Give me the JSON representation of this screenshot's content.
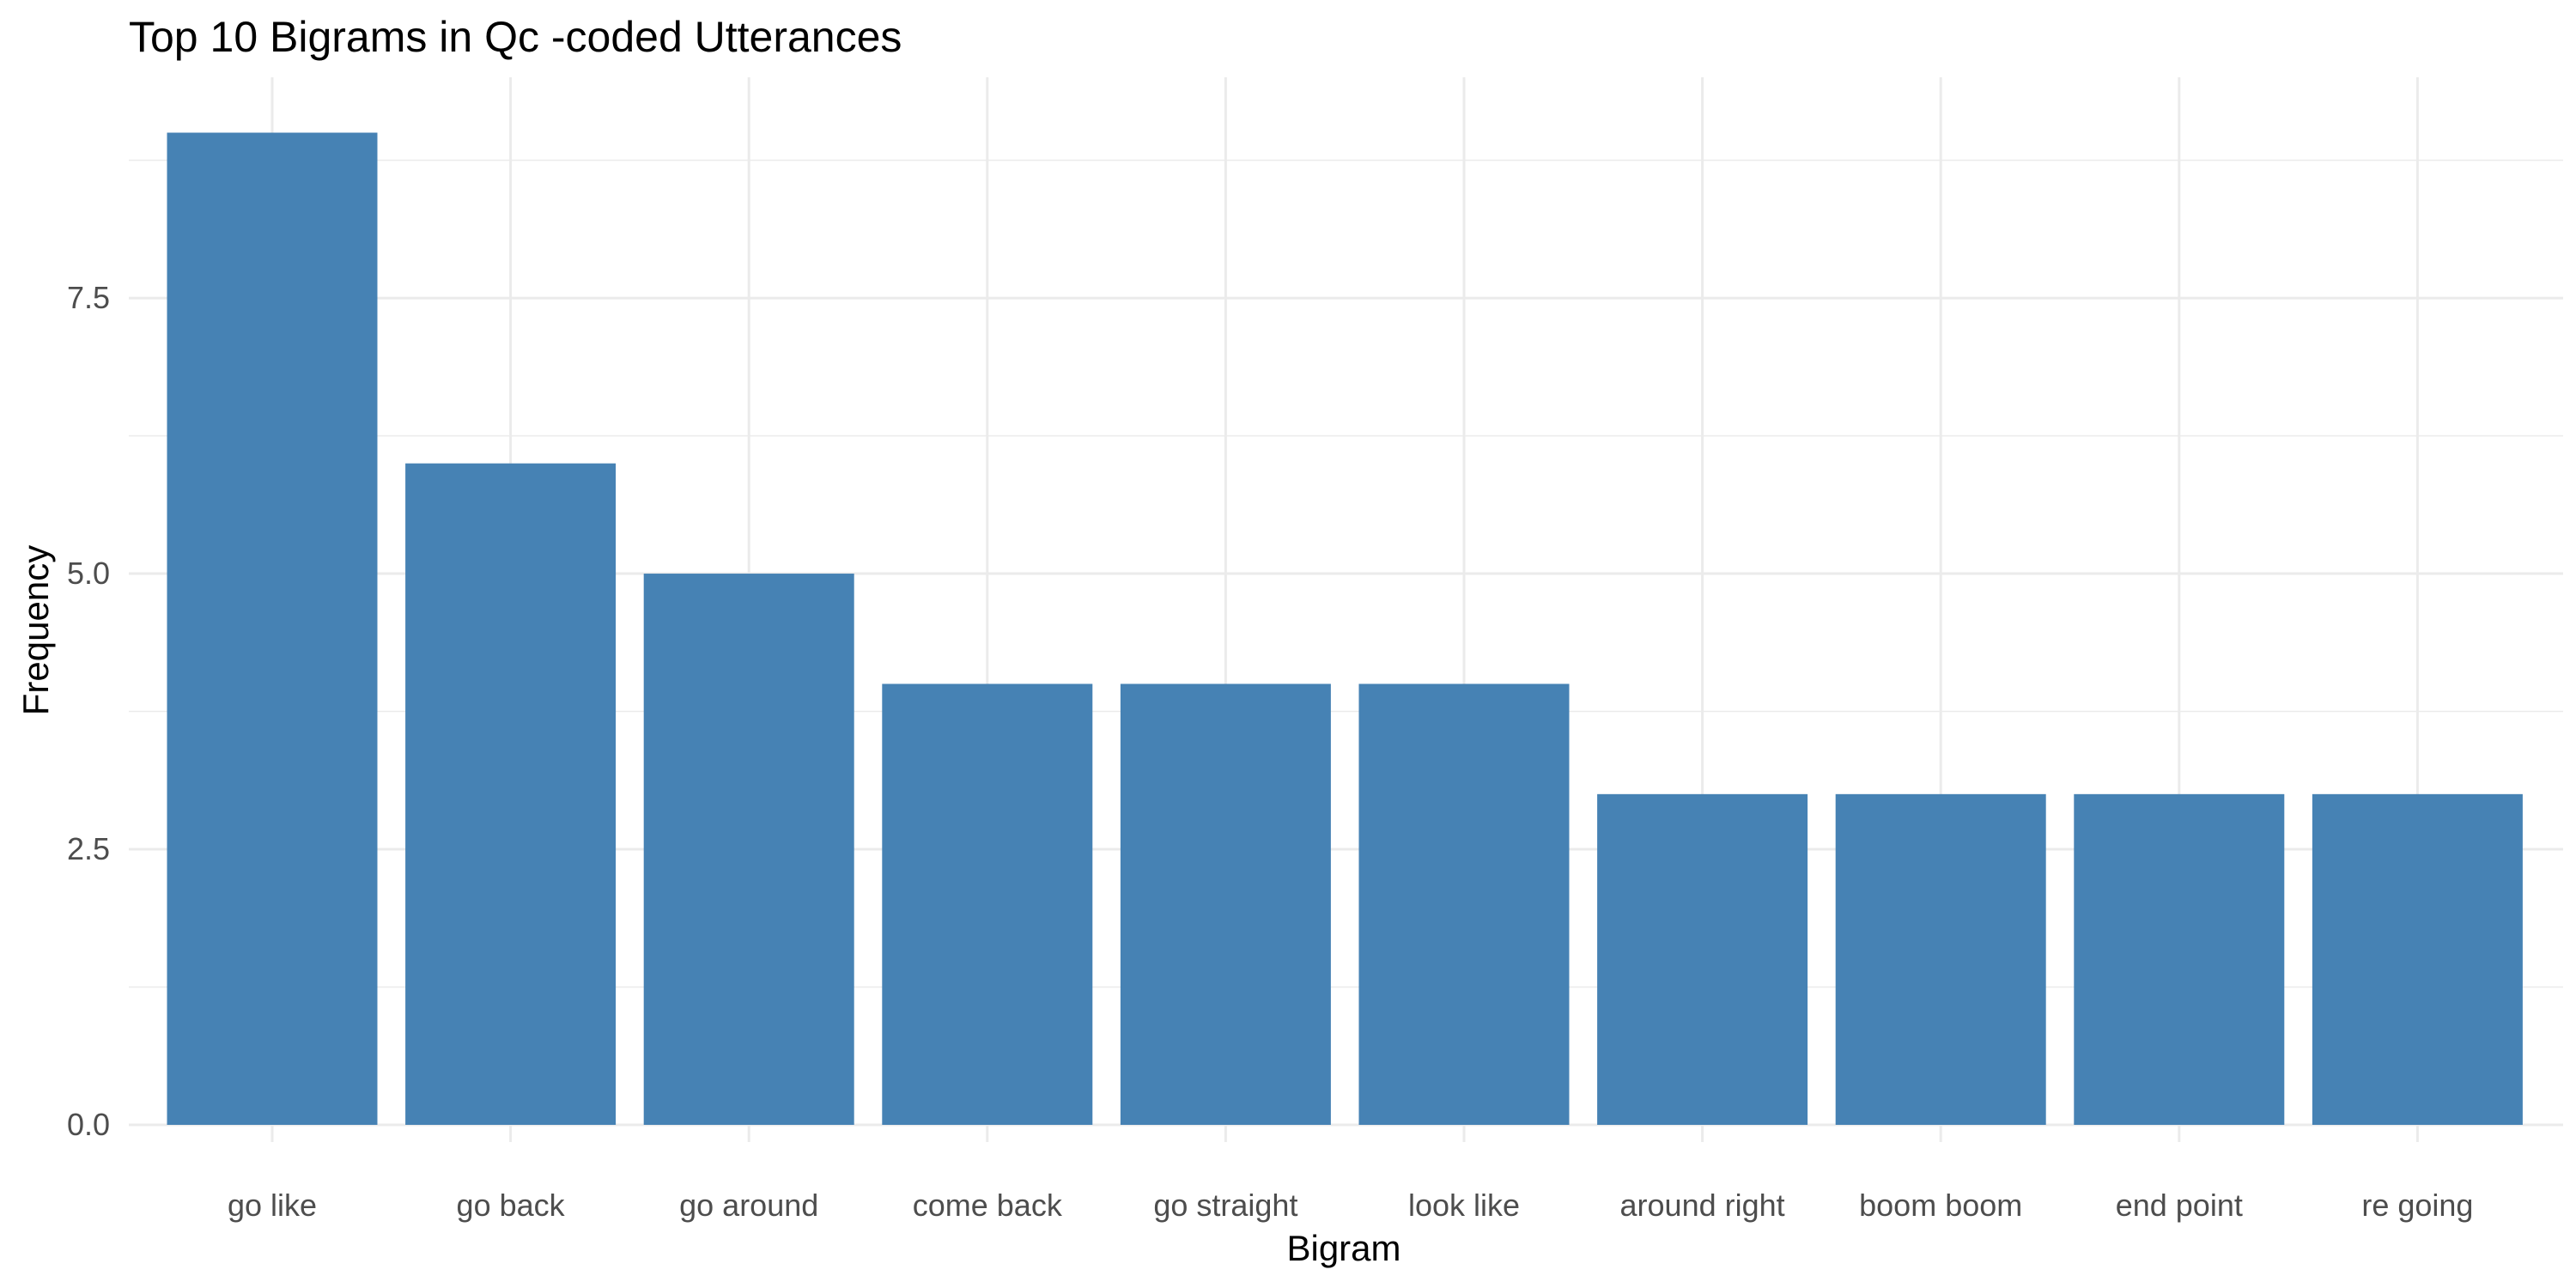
{
  "chart_data": {
    "type": "bar",
    "title": "Top 10 Bigrams in Qc -coded Utterances",
    "xlabel": "Bigram",
    "ylabel": "Frequency",
    "categories": [
      "go like",
      "go back",
      "go around",
      "come back",
      "go straight",
      "look like",
      "around right",
      "boom boom",
      "end point",
      "re going"
    ],
    "values": [
      9,
      6,
      5,
      4,
      4,
      4,
      3,
      3,
      3,
      3
    ],
    "ylim": [
      0,
      9.45
    ],
    "yticks": [
      0,
      2.5,
      5,
      7.5
    ],
    "ytick_labels": [
      "0.0",
      "2.5",
      "5.0",
      "7.5"
    ],
    "grid": true,
    "legend": "none",
    "bar_color": "#4682b4"
  }
}
